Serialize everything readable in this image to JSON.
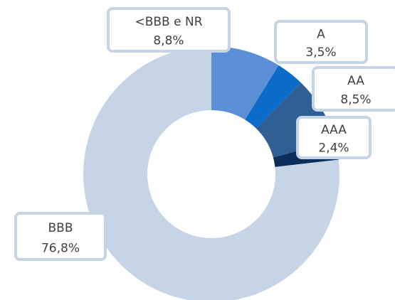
{
  "chart_data": {
    "type": "donut",
    "categories": [
      "<BBB e NR",
      "A",
      "AA",
      "AAA",
      "BBB"
    ],
    "values": [
      8.8,
      3.5,
      8.5,
      2.4,
      76.8
    ],
    "value_labels": [
      "8,8%",
      "3,5%",
      "8,5%",
      "2,4%",
      "76,8%"
    ],
    "colors": [
      "#5b8fd6",
      "#0a6cc8",
      "#2f5f94",
      "#0b2d5a",
      "#c5d5e6"
    ]
  }
}
